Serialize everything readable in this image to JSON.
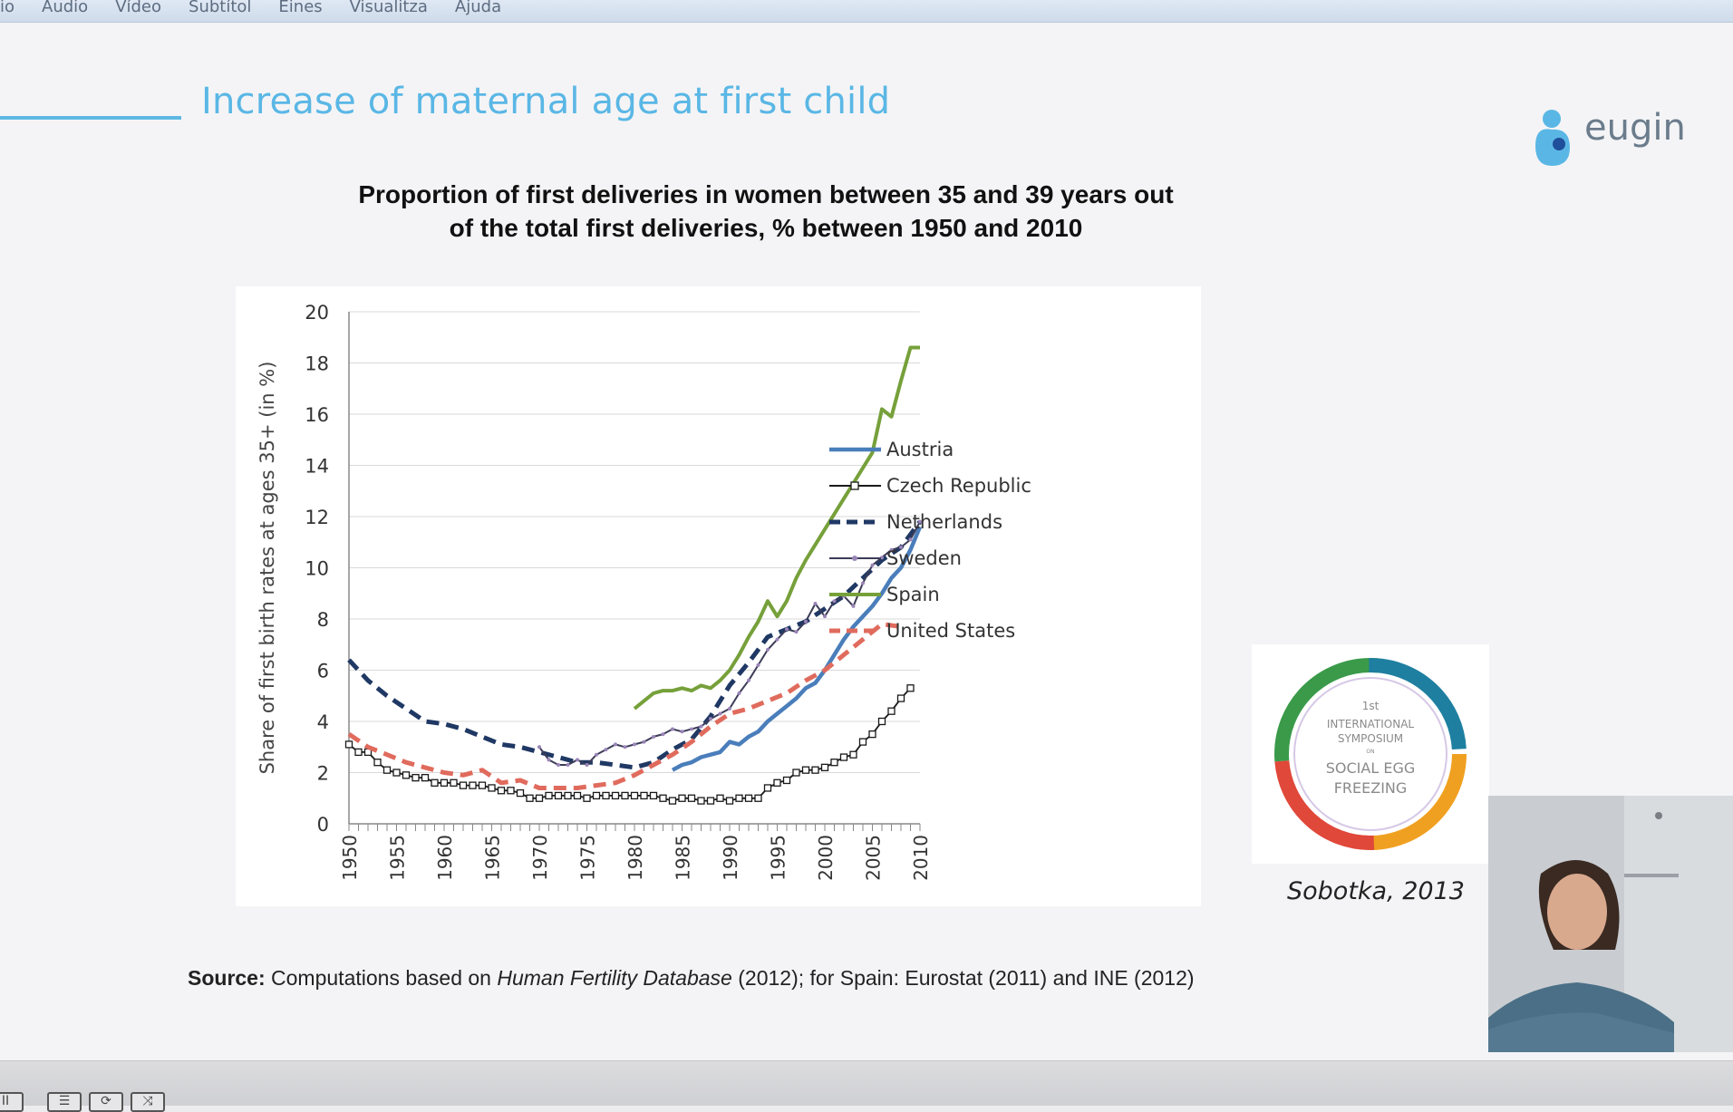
{
  "menu": {
    "items": [
      "io",
      "Àudio",
      "Vídeo",
      "Subtítol",
      "Eines",
      "Visualitza",
      "Ajuda"
    ]
  },
  "slide": {
    "title": "Increase of maternal age at first child",
    "logo_text": "eugin",
    "chart_title_line1": "Proportion of first deliveries in women between 35 and 39 years out",
    "chart_title_line2": "of the total first deliveries, % between 1950 and 2010",
    "citation": "Sobotka, 2013",
    "source_label": "Source:",
    "source_text1": " Computations based on ",
    "source_italic": "Human Fertility Database",
    "source_text2": " (2012); for Spain: Eurostat (2011) and INE (2012)",
    "symposium": {
      "line1": "1st",
      "line2": "INTERNATIONAL",
      "line3": "SYMPOSIUM",
      "line4": "ON",
      "line5": "SOCIAL EGG",
      "line6": "FREEZING"
    }
  },
  "colors": {
    "title_blue": "#5ab7e5",
    "austria": "#4a7ebb",
    "czech": "#1a1a1a",
    "netherlands": "#1f3864",
    "sweden": "#3c3c58",
    "spain": "#76a03a",
    "us": "#e06b5d"
  },
  "chart_data": {
    "type": "line",
    "title": "",
    "xlabel": "",
    "ylabel": "Share of first birth rates at ages 35+ (in %)",
    "xlim": [
      1950,
      2010
    ],
    "ylim": [
      0,
      20
    ],
    "yticks": [
      "0",
      "2",
      "4",
      "6",
      "8",
      "10",
      "12",
      "14",
      "16",
      "18",
      "20"
    ],
    "xticks": [
      "1950",
      "1955",
      "1960",
      "1965",
      "1970",
      "1975",
      "1980",
      "1985",
      "1990",
      "1995",
      "2000",
      "2005",
      "2010"
    ],
    "legend_position": "right",
    "series": [
      {
        "name": "Austria",
        "color": "#4a7ebb",
        "style": "solid-thick",
        "x": [
          1984,
          1985,
          1986,
          1987,
          1988,
          1989,
          1990,
          1991,
          1992,
          1993,
          1994,
          1995,
          1996,
          1997,
          1998,
          1999,
          2000,
          2001,
          2002,
          2003,
          2004,
          2005,
          2006,
          2007,
          2008,
          2009,
          2010
        ],
        "y": [
          2.1,
          2.3,
          2.4,
          2.6,
          2.7,
          2.8,
          3.2,
          3.1,
          3.4,
          3.6,
          4.0,
          4.3,
          4.6,
          4.9,
          5.3,
          5.5,
          6.0,
          6.6,
          7.2,
          7.7,
          8.1,
          8.5,
          9.0,
          9.6,
          10.0,
          10.7,
          11.6
        ]
      },
      {
        "name": "Czech Republic",
        "color": "#1a1a1a",
        "style": "square-markers",
        "x": [
          1950,
          1951,
          1952,
          1953,
          1954,
          1955,
          1956,
          1957,
          1958,
          1959,
          1960,
          1961,
          1962,
          1963,
          1964,
          1965,
          1966,
          1967,
          1968,
          1969,
          1970,
          1971,
          1972,
          1973,
          1974,
          1975,
          1976,
          1977,
          1978,
          1979,
          1980,
          1981,
          1982,
          1983,
          1984,
          1985,
          1986,
          1987,
          1988,
          1989,
          1990,
          1991,
          1992,
          1993,
          1994,
          1995,
          1996,
          1997,
          1998,
          1999,
          2000,
          2001,
          2002,
          2003,
          2004,
          2005,
          2006,
          2007,
          2008,
          2009
        ],
        "y": [
          3.1,
          2.8,
          2.8,
          2.4,
          2.1,
          2.0,
          1.9,
          1.8,
          1.8,
          1.6,
          1.6,
          1.6,
          1.5,
          1.5,
          1.5,
          1.4,
          1.3,
          1.3,
          1.2,
          1.0,
          1.0,
          1.1,
          1.1,
          1.1,
          1.1,
          1.0,
          1.1,
          1.1,
          1.1,
          1.1,
          1.1,
          1.1,
          1.1,
          1.0,
          0.9,
          1.0,
          1.0,
          0.9,
          0.9,
          1.0,
          0.9,
          1.0,
          1.0,
          1.0,
          1.4,
          1.6,
          1.7,
          2.0,
          2.1,
          2.1,
          2.2,
          2.4,
          2.6,
          2.7,
          3.2,
          3.5,
          4.0,
          4.4,
          4.9,
          5.3
        ]
      },
      {
        "name": "Netherlands",
        "color": "#1f3864",
        "style": "dashed",
        "x": [
          1950,
          1952,
          1954,
          1956,
          1958,
          1960,
          1962,
          1964,
          1966,
          1968,
          1970,
          1972,
          1974,
          1976,
          1978,
          1980,
          1982,
          1984,
          1986,
          1988,
          1990,
          1992,
          1994,
          1996,
          1998,
          2000,
          2002,
          2004,
          2006,
          2008,
          2010
        ],
        "y": [
          6.4,
          5.6,
          5.0,
          4.5,
          4.0,
          3.9,
          3.7,
          3.4,
          3.1,
          3.0,
          2.8,
          2.6,
          2.4,
          2.4,
          2.3,
          2.2,
          2.4,
          2.9,
          3.3,
          4.2,
          5.4,
          6.3,
          7.3,
          7.6,
          7.9,
          8.4,
          8.9,
          9.6,
          10.3,
          10.8,
          11.8
        ]
      },
      {
        "name": "Sweden",
        "color": "#3c3c58",
        "style": "thin-markers",
        "x": [
          1970,
          1971,
          1972,
          1973,
          1974,
          1975,
          1976,
          1977,
          1978,
          1979,
          1980,
          1981,
          1982,
          1983,
          1984,
          1985,
          1986,
          1987,
          1988,
          1989,
          1990,
          1991,
          1992,
          1993,
          1994,
          1995,
          1996,
          1997,
          1998,
          1999,
          2000,
          2001,
          2002,
          2003,
          2004,
          2005,
          2006,
          2007,
          2008,
          2009,
          2010
        ],
        "y": [
          3.0,
          2.5,
          2.3,
          2.3,
          2.5,
          2.3,
          2.7,
          2.9,
          3.1,
          3.0,
          3.1,
          3.2,
          3.4,
          3.5,
          3.7,
          3.6,
          3.7,
          3.8,
          4.1,
          4.3,
          4.5,
          5.1,
          5.6,
          6.2,
          6.8,
          7.2,
          7.6,
          7.5,
          7.9,
          8.6,
          8.1,
          8.7,
          8.9,
          8.5,
          9.4,
          10.1,
          10.4,
          10.7,
          10.8,
          11.1,
          11.8
        ]
      },
      {
        "name": "Spain",
        "color": "#76a03a",
        "style": "solid",
        "x": [
          1980,
          1981,
          1982,
          1983,
          1984,
          1985,
          1986,
          1987,
          1988,
          1989,
          1990,
          1991,
          1992,
          1993,
          1994,
          1995,
          1996,
          1997,
          1998,
          1999,
          2000,
          2001,
          2002,
          2003,
          2004,
          2005,
          2006,
          2007,
          2008,
          2009,
          2010
        ],
        "y": [
          4.5,
          4.8,
          5.1,
          5.2,
          5.2,
          5.3,
          5.2,
          5.4,
          5.3,
          5.6,
          6.0,
          6.6,
          7.3,
          7.9,
          8.7,
          8.1,
          8.7,
          9.6,
          10.3,
          10.9,
          11.5,
          12.1,
          12.7,
          13.3,
          13.9,
          14.5,
          16.2,
          15.9,
          17.3,
          18.6,
          18.6
        ]
      },
      {
        "name": "United States",
        "color": "#e06b5d",
        "style": "dashed",
        "x": [
          1950,
          1952,
          1954,
          1956,
          1958,
          1960,
          1962,
          1964,
          1966,
          1968,
          1970,
          1972,
          1974,
          1976,
          1978,
          1980,
          1982,
          1984,
          1986,
          1988,
          1990,
          1992,
          1994,
          1996,
          1998,
          2000,
          2002,
          2004,
          2006,
          2008
        ],
        "y": [
          3.5,
          3.0,
          2.7,
          2.4,
          2.2,
          2.0,
          1.9,
          2.1,
          1.6,
          1.7,
          1.4,
          1.4,
          1.4,
          1.5,
          1.6,
          1.9,
          2.3,
          2.7,
          3.2,
          3.8,
          4.3,
          4.5,
          4.8,
          5.1,
          5.6,
          6.0,
          6.6,
          7.2,
          7.8,
          7.7
        ]
      }
    ]
  }
}
